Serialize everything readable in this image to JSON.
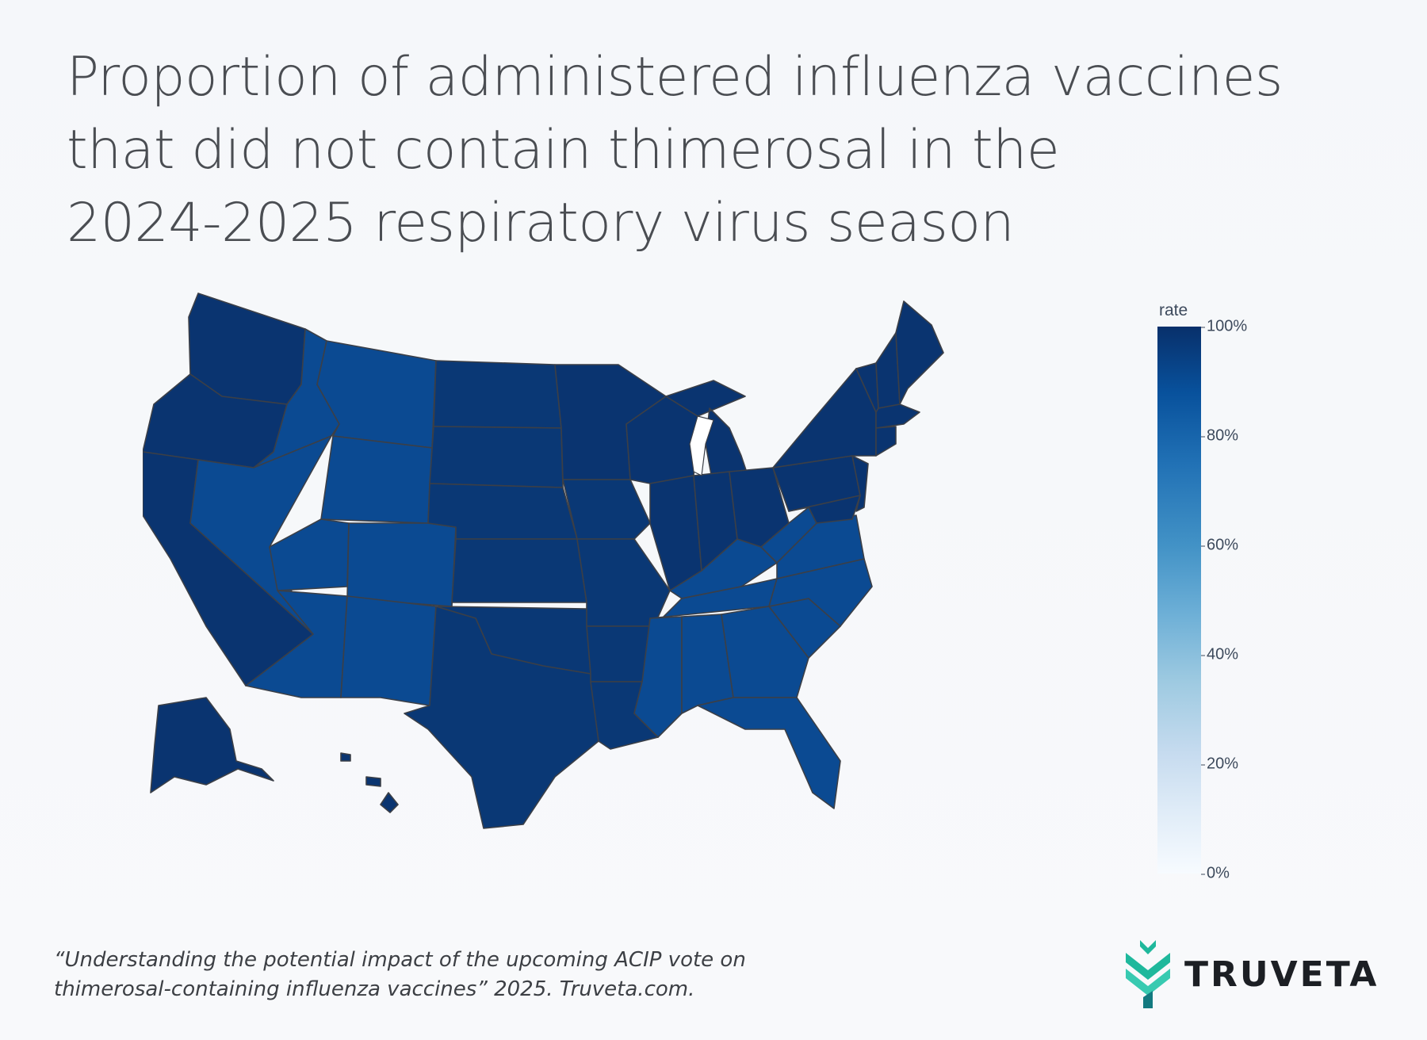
{
  "title": {
    "line1": "Proportion of administered influenza vaccines",
    "line2": "that did not contain thimerosal in the",
    "line3": "2024-2025 respiratory virus season"
  },
  "colorbar": {
    "title": "rate",
    "ticks": [
      "100%",
      "80%",
      "60%",
      "40%",
      "20%",
      "0%"
    ],
    "colors": [
      "#08306b",
      "#08519c",
      "#2171b5",
      "#4292c6",
      "#6baed6",
      "#9ecae1",
      "#c6dbef",
      "#deebf7",
      "#f7fbff"
    ]
  },
  "map": {
    "type": "choropleth",
    "region": "USA states",
    "value_field": "rate",
    "range": [
      0,
      100
    ],
    "colors": {
      "dark": "#08306b",
      "darker_mid": "#0a3b7a",
      "mid": "#0b4a92",
      "lighter": "#0d4d96"
    }
  },
  "citation": {
    "line1": "“Understanding the potential impact of the upcoming ACIP vote on",
    "line2": "thimerosal-containing  influenza vaccines” 2025. Truveta.com."
  },
  "logo": {
    "text": "TRUVETA",
    "colors": [
      "#1fb89c",
      "#22c4a8",
      "#137a80"
    ]
  }
}
